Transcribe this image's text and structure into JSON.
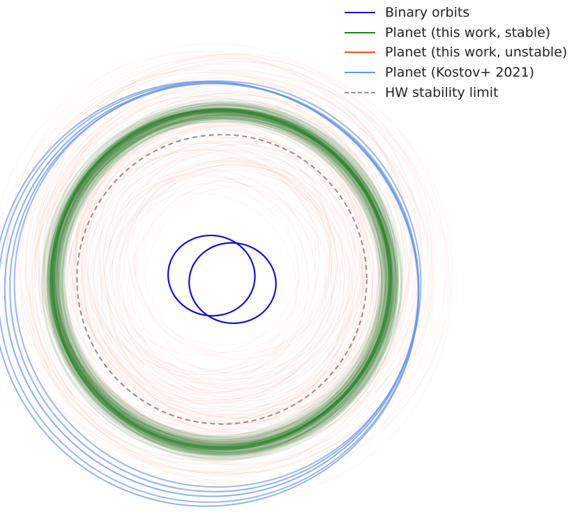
{
  "chart_data": {
    "type": "orbit-diagram",
    "title": "",
    "xlabel": "",
    "ylabel": "",
    "axes_visible": false,
    "grid": false,
    "legend_placement": "top-right",
    "legend": [
      {
        "label": "Binary orbits",
        "color": "#1010d8",
        "style": "solid"
      },
      {
        "label": "Planet (this work, stable)",
        "color": "#1e7f1e",
        "style": "solid"
      },
      {
        "label": "Planet (this work, unstable)",
        "color": "#f2541b",
        "style": "solid"
      },
      {
        "label": "Planet (Kostov+ 2021)",
        "color": "#6495ed",
        "style": "solid"
      },
      {
        "label": "HW stability limit",
        "color": "#9a8c8c",
        "style": "dashed"
      }
    ],
    "binary_orbits": [
      {
        "center": [
          -0.044,
          0.016
        ],
        "a": 0.186,
        "b": 0.172,
        "rotation_deg": 8
      },
      {
        "center": [
          0.046,
          -0.016
        ],
        "a": 0.186,
        "b": 0.172,
        "rotation_deg": 8
      }
    ],
    "hw_stability_limit": {
      "center": [
        0.0,
        0.0
      ],
      "radius": 0.62
    },
    "planet_stable": {
      "count": 200,
      "radius_range": [
        0.68,
        0.76
      ],
      "center_jitter": 0.03
    },
    "planet_unstable": {
      "count": 150,
      "radius_range": [
        0.4,
        0.92
      ],
      "center_jitter": 0.1
    },
    "planet_kostov": [
      {
        "center": [
          -0.018,
          -0.02
        ],
        "radius": 0.87
      },
      {
        "center": [
          -0.032,
          -0.035
        ],
        "radius": 0.875
      },
      {
        "center": [
          -0.044,
          -0.045
        ],
        "radius": 0.885
      },
      {
        "center": [
          -0.057,
          -0.055
        ],
        "radius": 0.9
      },
      {
        "center": [
          -0.068,
          -0.062
        ],
        "radius": 0.91
      }
    ]
  }
}
